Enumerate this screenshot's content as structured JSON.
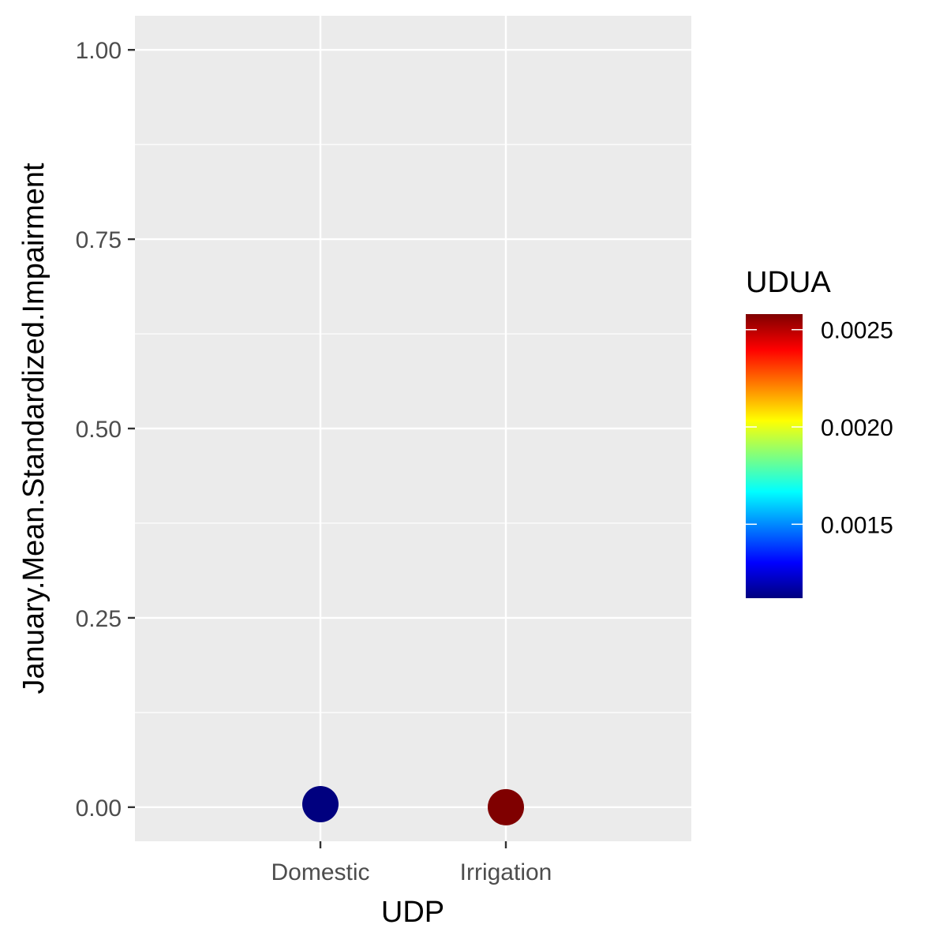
{
  "chart_data": {
    "type": "scatter",
    "title": "",
    "xlabel": "UDP",
    "ylabel": "January.Mean.Standardized.Impairment",
    "categories": [
      "Domestic",
      "Irrigation"
    ],
    "ylim": [
      -0.045,
      1.045
    ],
    "y_ticks": [
      0.0,
      0.25,
      0.5,
      0.75,
      1.0
    ],
    "y_tick_labels": [
      "0.00",
      "0.25",
      "0.50",
      "0.75",
      "1.00"
    ],
    "grid": true,
    "points": [
      {
        "category": "Domestic",
        "y": 0.004,
        "color_value": 0.00112
      },
      {
        "category": "Irrigation",
        "y": 0.0,
        "color_value": 0.00258
      }
    ],
    "legend": {
      "title": "UDUA",
      "placement": "right",
      "range": [
        0.00112,
        0.00258
      ],
      "ticks": [
        0.0015,
        0.002,
        0.0025
      ],
      "tick_labels": [
        "0.0015",
        "0.0020",
        "0.0025"
      ],
      "colors": [
        "#00007F",
        "#0000FF",
        "#007FFF",
        "#00FFFF",
        "#7FFF7F",
        "#FFFF00",
        "#FF7F00",
        "#FF0000",
        "#7F0000"
      ]
    },
    "panel_background": "#EBEBEB",
    "grid_color": "#FFFFFF"
  }
}
